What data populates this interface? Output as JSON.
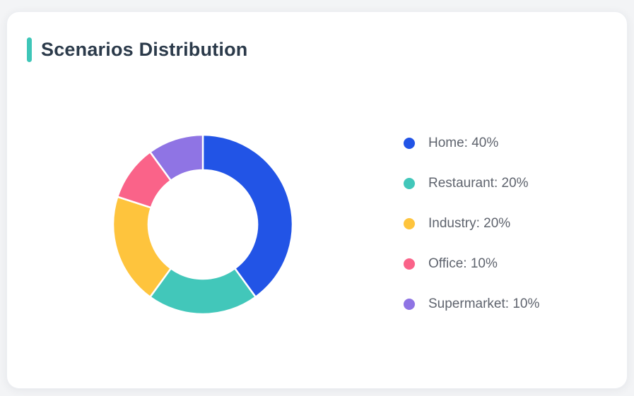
{
  "page": {
    "background_color": "#f3f4f6",
    "card_background": "#ffffff"
  },
  "card": {
    "title": "Scenarios Distribution",
    "accent_color": "#3ec6b8",
    "title_color": "#2b3a4a"
  },
  "chart_data": {
    "type": "pie",
    "subtype": "donut",
    "title": "Scenarios Distribution",
    "categories": [
      "Home",
      "Restaurant",
      "Industry",
      "Office",
      "Supermarket"
    ],
    "values": [
      40,
      20,
      20,
      10,
      10
    ],
    "unit": "%",
    "colors": [
      "#2254e6",
      "#42c7ba",
      "#fec43d",
      "#fa6389",
      "#8f74e4"
    ],
    "start_angle_deg": 0,
    "direction": "clockwise",
    "inner_radius_ratio": 0.61,
    "slice_gap_color": "#ffffff",
    "legend": {
      "position": "right",
      "labels": [
        "Home: 40%",
        "Restaurant: 20%",
        "Industry: 20%",
        "Office: 10%",
        "Supermarket: 10%"
      ]
    }
  }
}
